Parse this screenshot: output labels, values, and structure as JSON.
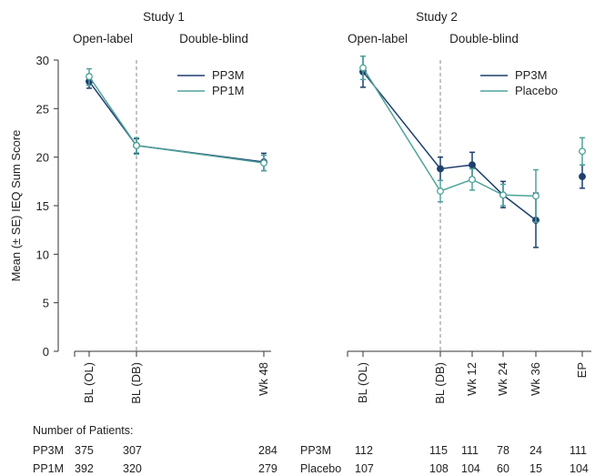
{
  "colors": {
    "series_dark": "#1f3f6e",
    "series_light": "#4fa39a",
    "axis": "#333333",
    "phase_divider": "#888888"
  },
  "y_axis_label": "Mean (± SE) IEQ Sum Score",
  "y_ticks": [
    "0",
    "5",
    "10",
    "15",
    "20",
    "25",
    "30"
  ],
  "chart_data": [
    {
      "type": "line",
      "title": "Study 1",
      "phases": [
        "Open-label",
        "Double-blind"
      ],
      "categories": [
        "BL (OL)",
        "BL (DB)",
        "Wk 48"
      ],
      "x_days": [
        0,
        78,
        414
      ],
      "ylabel": "Mean (± SE) IEQ Sum Score",
      "ylim": [
        0,
        30
      ],
      "y_ticks": [
        0,
        5,
        10,
        15,
        20,
        25,
        30
      ],
      "legend_position": "top-right",
      "series": [
        {
          "name": "PP3M",
          "marker": "filled",
          "values": [
            27.8,
            21.2,
            19.5
          ],
          "se_low": [
            27.1,
            20.4,
            18.6
          ],
          "se_high": [
            28.5,
            21.9,
            20.4
          ]
        },
        {
          "name": "PP1M",
          "marker": "open",
          "values": [
            28.3,
            21.2,
            19.4
          ],
          "se_low": [
            27.4,
            20.3,
            18.6
          ],
          "se_high": [
            29.1,
            22.0,
            20.2
          ]
        }
      ]
    },
    {
      "type": "line",
      "title": "Study 2",
      "phases": [
        "Open-label",
        "Double-blind"
      ],
      "categories": [
        "BL (OL)",
        "BL (DB)",
        "Wk 12",
        "Wk 24",
        "Wk 36",
        "EP"
      ],
      "ylim": [
        0,
        30
      ],
      "legend_position": "top-right",
      "series": [
        {
          "name": "PP3M",
          "marker": "filled",
          "values": [
            28.8,
            18.8,
            19.2,
            16.1,
            13.5,
            18.0
          ],
          "se_low": [
            27.2,
            17.6,
            17.9,
            14.8,
            10.7,
            16.8
          ],
          "se_high": [
            30.4,
            20.0,
            20.5,
            17.5,
            16.3,
            19.2
          ]
        },
        {
          "name": "Placebo",
          "marker": "open",
          "values": [
            29.2,
            16.5,
            17.7,
            16.1,
            16.0,
            20.6
          ],
          "se_low": [
            28.0,
            15.4,
            16.6,
            15.0,
            13.3,
            19.2
          ],
          "se_high": [
            30.4,
            17.6,
            18.8,
            17.2,
            18.7,
            22.0
          ]
        }
      ]
    }
  ],
  "patients": {
    "header": "Number of Patients:",
    "study1": [
      {
        "label": "PP3M",
        "counts": [
          "375",
          "307",
          "284"
        ]
      },
      {
        "label": "PP1M",
        "counts": [
          "392",
          "320",
          "279"
        ]
      }
    ],
    "study2": [
      {
        "label": "PP3M",
        "counts": [
          "112",
          "115",
          "111",
          "78",
          "24",
          "111"
        ]
      },
      {
        "label": "Placebo",
        "counts": [
          "107",
          "108",
          "104",
          "60",
          "15",
          "104"
        ]
      }
    ]
  }
}
